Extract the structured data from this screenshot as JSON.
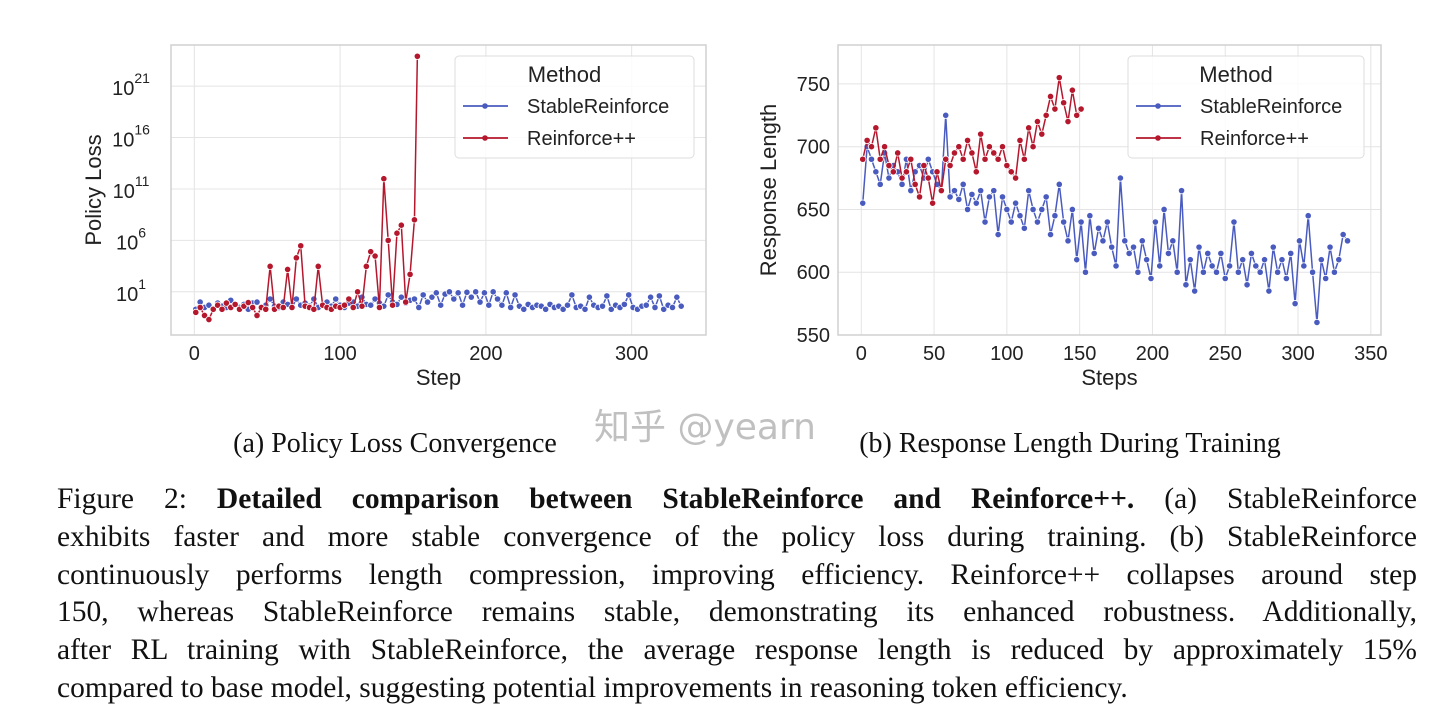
{
  "colors": {
    "stable": "#4a5bbf",
    "reinforce": "#b5172d",
    "grid": "#e4e4e4",
    "frame": "#d0d0d0"
  },
  "chart_data": [
    {
      "type": "line",
      "panel": "a",
      "xlabel": "Step",
      "ylabel": "Policy Loss",
      "yscale": "log",
      "xlim": [
        -16,
        351
      ],
      "ylim_log10": [
        -3.2,
        25
      ],
      "xticks": [
        0,
        100,
        200,
        300
      ],
      "xtick_labels": [
        "0",
        "100",
        "200",
        "300"
      ],
      "yticks_exp": [
        1,
        6,
        11,
        16,
        21
      ],
      "ytick_base": "10",
      "grid": true,
      "markers": true,
      "legend": {
        "title": "Method",
        "placement": "top-right"
      },
      "series": [
        {
          "name": "StableReinforce",
          "color": "#4a5bbf",
          "x": [
            1,
            4,
            7,
            10,
            13,
            16,
            19,
            22,
            25,
            28,
            31,
            34,
            37,
            40,
            43,
            46,
            49,
            52,
            55,
            58,
            61,
            64,
            67,
            70,
            73,
            76,
            79,
            82,
            85,
            88,
            91,
            94,
            97,
            100,
            103,
            106,
            109,
            112,
            115,
            118,
            121,
            124,
            127,
            130,
            133,
            136,
            139,
            142,
            145,
            148,
            151,
            154,
            157,
            160,
            163,
            166,
            169,
            172,
            175,
            178,
            181,
            184,
            187,
            190,
            193,
            196,
            199,
            202,
            205,
            208,
            211,
            214,
            217,
            220,
            223,
            226,
            229,
            232,
            235,
            238,
            241,
            244,
            247,
            250,
            253,
            256,
            259,
            262,
            265,
            268,
            271,
            274,
            277,
            280,
            283,
            286,
            289,
            292,
            295,
            298,
            301,
            304,
            307,
            310,
            313,
            316,
            319,
            322,
            325,
            328,
            331,
            334
          ],
          "y": [
            0.2,
            1,
            0.3,
            0.5,
            0.2,
            0.8,
            0.4,
            0.3,
            1.5,
            0.5,
            0.3,
            0.6,
            0.2,
            0.8,
            1,
            0.3,
            0.5,
            2,
            0.4,
            0.3,
            1,
            0.6,
            0.3,
            2,
            0.5,
            0.8,
            0.4,
            2,
            0.3,
            0.6,
            1,
            0.4,
            2,
            0.5,
            0.3,
            0.8,
            1,
            0.4,
            3,
            0.6,
            0.5,
            2,
            0.8,
            0.4,
            5,
            1,
            0.6,
            3,
            0.8,
            1.5,
            2,
            0.3,
            5,
            1,
            3,
            8,
            0.5,
            6,
            10,
            2,
            8,
            0.5,
            9,
            3,
            10,
            1,
            8,
            0.5,
            10,
            2,
            0.5,
            8,
            0.3,
            5,
            0.4,
            0.2,
            0.6,
            0.3,
            0.5,
            0.4,
            0.2,
            0.6,
            0.3,
            0.4,
            0.2,
            0.5,
            5,
            0.3,
            0.4,
            0.2,
            3,
            0.5,
            0.3,
            0.4,
            4,
            0.2,
            0.5,
            0.3,
            0.6,
            5,
            0.3,
            0.2,
            0.4,
            0.5,
            3,
            0.3,
            4,
            0.2,
            0.5,
            0.3,
            3,
            0.4
          ]
        },
        {
          "name": "Reinforce++",
          "color": "#b5172d",
          "x": [
            1,
            4,
            7,
            10,
            13,
            16,
            19,
            22,
            25,
            28,
            31,
            34,
            37,
            40,
            43,
            46,
            49,
            52,
            55,
            58,
            61,
            64,
            67,
            70,
            73,
            76,
            79,
            82,
            85,
            88,
            91,
            94,
            97,
            100,
            103,
            106,
            109,
            112,
            115,
            118,
            121,
            124,
            127,
            130,
            133,
            136,
            139,
            142,
            145,
            148,
            151,
            153
          ],
          "y": [
            0.1,
            0.3,
            0.05,
            0.02,
            0.2,
            0.5,
            0.2,
            0.8,
            0.3,
            0.6,
            0.2,
            0.4,
            0.9,
            0.3,
            0.05,
            0.3,
            0.2,
            3000,
            0.2,
            0.4,
            0.3,
            1500,
            0.3,
            20000,
            300000,
            0.4,
            0.3,
            0.2,
            3000,
            0.5,
            0.3,
            0.2,
            0.4,
            0.3,
            0.5,
            2,
            0.3,
            10,
            0.4,
            3000,
            80000,
            30000,
            0.3,
            1000000000000.0,
            1000000.0,
            0.5,
            5000000.0,
            30000000.0,
            1,
            500,
            100000000.0,
            8e+23
          ]
        }
      ]
    },
    {
      "type": "line",
      "panel": "b",
      "xlabel": "Steps",
      "ylabel": "Response Length",
      "xlim": [
        -16,
        357
      ],
      "ylim": [
        550,
        781
      ],
      "xticks": [
        0,
        50,
        100,
        150,
        200,
        250,
        300,
        350
      ],
      "xtick_labels": [
        "0",
        "50",
        "100",
        "150",
        "200",
        "250",
        "300",
        "350"
      ],
      "yticks": [
        550,
        600,
        650,
        700,
        750
      ],
      "ytick_labels": [
        "550",
        "600",
        "650",
        "700",
        "750"
      ],
      "grid": true,
      "markers": true,
      "legend": {
        "title": "Method",
        "placement": "top-right"
      },
      "series": [
        {
          "name": "StableReinforce",
          "color": "#4a5bbf",
          "x": [
            1,
            4,
            7,
            10,
            13,
            16,
            19,
            22,
            25,
            28,
            31,
            34,
            37,
            40,
            43,
            46,
            49,
            52,
            55,
            58,
            61,
            64,
            67,
            70,
            73,
            76,
            79,
            82,
            85,
            88,
            91,
            94,
            97,
            100,
            103,
            106,
            109,
            112,
            115,
            118,
            121,
            124,
            127,
            130,
            133,
            136,
            139,
            142,
            145,
            148,
            151,
            154,
            157,
            160,
            163,
            166,
            169,
            172,
            175,
            178,
            181,
            184,
            187,
            190,
            193,
            196,
            199,
            202,
            205,
            208,
            211,
            214,
            217,
            220,
            223,
            226,
            229,
            232,
            235,
            238,
            241,
            244,
            247,
            250,
            253,
            256,
            259,
            262,
            265,
            268,
            271,
            274,
            277,
            280,
            283,
            286,
            289,
            292,
            295,
            298,
            301,
            304,
            307,
            310,
            313,
            316,
            319,
            322,
            325,
            328,
            331,
            334
          ],
          "y": [
            655,
            700,
            690,
            680,
            670,
            695,
            675,
            685,
            680,
            670,
            690,
            665,
            680,
            685,
            675,
            690,
            680,
            670,
            665,
            725,
            660,
            665,
            658,
            670,
            650,
            662,
            655,
            665,
            640,
            660,
            665,
            630,
            660,
            650,
            640,
            655,
            645,
            635,
            665,
            650,
            640,
            650,
            660,
            630,
            645,
            670,
            640,
            625,
            650,
            610,
            640,
            600,
            645,
            615,
            635,
            625,
            640,
            620,
            605,
            675,
            625,
            615,
            620,
            600,
            625,
            610,
            595,
            640,
            605,
            650,
            615,
            625,
            600,
            665,
            590,
            610,
            585,
            620,
            600,
            615,
            605,
            600,
            615,
            595,
            605,
            640,
            600,
            610,
            590,
            615,
            605,
            600,
            610,
            585,
            620,
            600,
            610,
            595,
            615,
            575,
            625,
            605,
            645,
            600,
            560,
            610,
            595,
            620,
            600,
            610,
            630,
            625
          ]
        },
        {
          "name": "Reinforce++",
          "color": "#b5172d",
          "x": [
            1,
            4,
            7,
            10,
            13,
            16,
            19,
            22,
            25,
            28,
            31,
            34,
            37,
            40,
            43,
            46,
            49,
            52,
            55,
            58,
            61,
            64,
            67,
            70,
            73,
            76,
            79,
            82,
            85,
            88,
            91,
            94,
            97,
            100,
            103,
            106,
            109,
            112,
            115,
            118,
            121,
            124,
            127,
            130,
            133,
            136,
            139,
            142,
            145,
            148,
            151
          ],
          "y": [
            690,
            705,
            700,
            715,
            690,
            700,
            685,
            680,
            695,
            675,
            680,
            690,
            670,
            660,
            685,
            675,
            655,
            680,
            665,
            690,
            685,
            695,
            700,
            690,
            705,
            695,
            680,
            710,
            690,
            700,
            695,
            690,
            700,
            685,
            680,
            675,
            705,
            690,
            715,
            700,
            720,
            710,
            725,
            740,
            730,
            755,
            735,
            720,
            745,
            725,
            730
          ]
        }
      ]
    }
  ],
  "subcaptions": {
    "a": "(a) Policy Loss Convergence",
    "b": "(b) Response Length During Training"
  },
  "caption": {
    "label": "Figure 2: ",
    "bold": "Detailed comparison between StableReinforce and Reinforce++.",
    "line1_rest": " (a) StableReinforce",
    "line2": "exhibits faster and more stable convergence of the policy loss during training. (b) StableReinforce",
    "line3": "continuously performs length compression, improving efficiency. Reinforce++ collapses around step",
    "line4": "150, whereas StableReinforce remains stable, demonstrating its enhanced robustness. Additionally,",
    "line5": "after RL training with StableReinforce, the average response length is reduced by approximately 15%",
    "line6": "compared to base model, suggesting potential improvements in reasoning token efficiency."
  },
  "watermark": "知乎 @yearn"
}
